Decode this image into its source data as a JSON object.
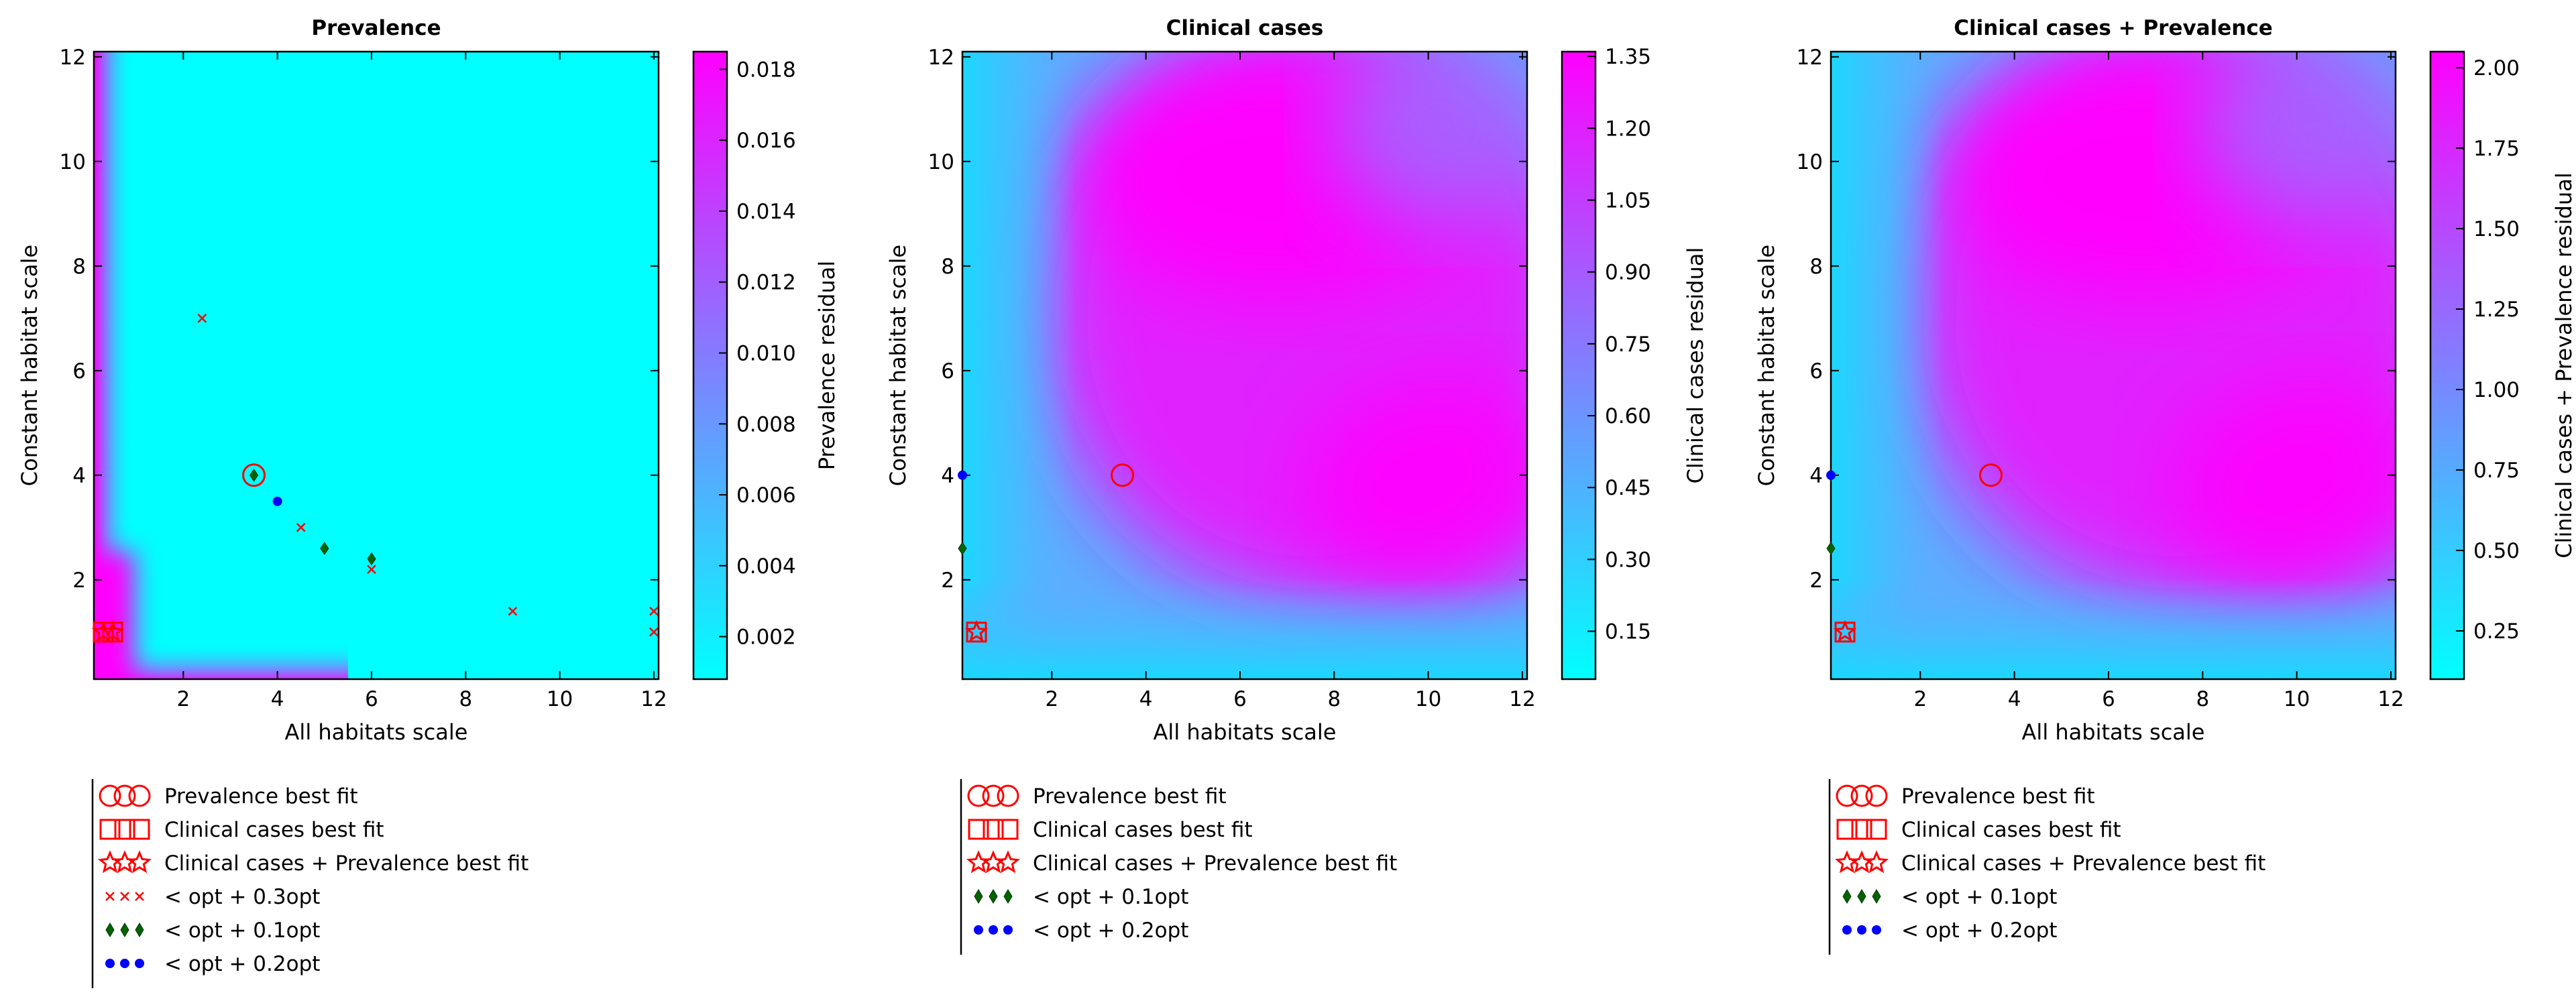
{
  "colors": {
    "low": "#00ffff",
    "mid": "#8080ff",
    "high": "#ff00ff",
    "marker_red": "#ff0000",
    "marker_green": "#006400",
    "marker_blue": "#0000ff",
    "frame": "#000000"
  },
  "chart_data": [
    {
      "type": "heatmap",
      "title": "Prevalence",
      "xlabel": "All habitats scale",
      "ylabel": "Constant habitat scale",
      "xlim": [
        0.1,
        12.1
      ],
      "ylim": [
        0.1,
        12.1
      ],
      "xticks": [
        "2",
        "4",
        "6",
        "8",
        "10",
        "12"
      ],
      "yticks": [
        "2",
        "4",
        "6",
        "8",
        "10",
        "12"
      ],
      "colorbar": {
        "label": "Prevalence residual",
        "min": 0.0008,
        "max": 0.0185,
        "ticks": [
          "0.002",
          "0.004",
          "0.006",
          "0.008",
          "0.010",
          "0.012",
          "0.014",
          "0.016",
          "0.018"
        ]
      },
      "surface": "Low values across most of the grid; high values along the left edge and bottom-left corner",
      "markers": {
        "prevalence_best": [
          [
            3.5,
            4.0
          ]
        ],
        "clinical_best": [
          [
            0.3,
            1.0
          ],
          [
            0.5,
            1.0
          ]
        ],
        "combined_best": [
          [
            0.3,
            1.0
          ],
          [
            0.5,
            1.0
          ]
        ],
        "cross_03": [
          [
            2.4,
            7.0
          ],
          [
            4.5,
            3.0
          ],
          [
            6.0,
            2.2
          ],
          [
            9.0,
            1.4
          ],
          [
            12.0,
            1.4
          ],
          [
            12.0,
            1.0
          ]
        ],
        "diamond_01": [
          [
            3.5,
            4.0
          ],
          [
            5.0,
            2.6
          ],
          [
            6.0,
            2.4
          ]
        ],
        "dot_02": [
          [
            4.0,
            3.5
          ]
        ]
      },
      "legend": [
        {
          "marker": "circle",
          "label": "Prevalence best fit"
        },
        {
          "marker": "square",
          "label": "Clinical cases best fit"
        },
        {
          "marker": "star",
          "label": "Clinical cases + Prevalence best fit"
        },
        {
          "marker": "cross",
          "label": "< opt + 0.3opt"
        },
        {
          "marker": "diamond",
          "label": "< opt + 0.1opt"
        },
        {
          "marker": "dot",
          "label": "< opt + 0.2opt"
        }
      ]
    },
    {
      "type": "heatmap",
      "title": "Clinical cases",
      "xlabel": "All habitats scale",
      "ylabel": "Constant habitat scale",
      "xlim": [
        0.1,
        12.1
      ],
      "ylim": [
        0.1,
        12.1
      ],
      "xticks": [
        "2",
        "4",
        "6",
        "8",
        "10",
        "12"
      ],
      "yticks": [
        "2",
        "4",
        "6",
        "8",
        "10",
        "12"
      ],
      "colorbar": {
        "label": "Clinical cases residual",
        "min": 0.05,
        "max": 1.36,
        "ticks": [
          "0.15",
          "0.30",
          "0.45",
          "0.60",
          "0.75",
          "0.90",
          "1.05",
          "1.20",
          "1.35"
        ]
      },
      "surface": "Low values near the left and bottom edges; high values in the upper and right interior",
      "markers": {
        "prevalence_best": [
          [
            3.5,
            4.0
          ]
        ],
        "clinical_best": [
          [
            0.4,
            1.0
          ]
        ],
        "combined_best": [
          [
            0.4,
            1.0
          ]
        ],
        "diamond_01": [
          [
            0.1,
            2.6
          ]
        ],
        "dot_02": [
          [
            0.1,
            4.0
          ]
        ]
      },
      "legend": [
        {
          "marker": "circle",
          "label": "Prevalence best fit"
        },
        {
          "marker": "square",
          "label": "Clinical cases best fit"
        },
        {
          "marker": "star",
          "label": "Clinical cases + Prevalence best fit"
        },
        {
          "marker": "diamond",
          "label": "< opt + 0.1opt"
        },
        {
          "marker": "dot",
          "label": "< opt + 0.2opt"
        }
      ]
    },
    {
      "type": "heatmap",
      "title": "Clinical cases + Prevalence",
      "xlabel": "All habitats scale",
      "ylabel": "Constant habitat scale",
      "xlim": [
        0.1,
        12.1
      ],
      "ylim": [
        0.1,
        12.1
      ],
      "xticks": [
        "2",
        "4",
        "6",
        "8",
        "10",
        "12"
      ],
      "yticks": [
        "2",
        "4",
        "6",
        "8",
        "10",
        "12"
      ],
      "colorbar": {
        "label": "Clinical cases + Prevalence residual",
        "min": 0.1,
        "max": 2.05,
        "ticks": [
          "0.25",
          "0.50",
          "0.75",
          "1.00",
          "1.25",
          "1.50",
          "1.75",
          "2.00"
        ]
      },
      "surface": "Low values near the left and bottom edges; high values in the upper and right interior",
      "markers": {
        "prevalence_best": [
          [
            3.5,
            4.0
          ]
        ],
        "clinical_best": [
          [
            0.4,
            1.0
          ]
        ],
        "combined_best": [
          [
            0.4,
            1.0
          ]
        ],
        "diamond_01": [
          [
            0.1,
            4.0
          ],
          [
            0.1,
            2.6
          ]
        ],
        "dot_02": [
          [
            0.1,
            4.0
          ]
        ]
      },
      "legend": [
        {
          "marker": "circle",
          "label": "Prevalence best fit"
        },
        {
          "marker": "square",
          "label": "Clinical cases best fit"
        },
        {
          "marker": "star",
          "label": "Clinical cases + Prevalence best fit"
        },
        {
          "marker": "diamond",
          "label": "< opt + 0.1opt"
        },
        {
          "marker": "dot",
          "label": "< opt + 0.2opt"
        }
      ]
    }
  ]
}
